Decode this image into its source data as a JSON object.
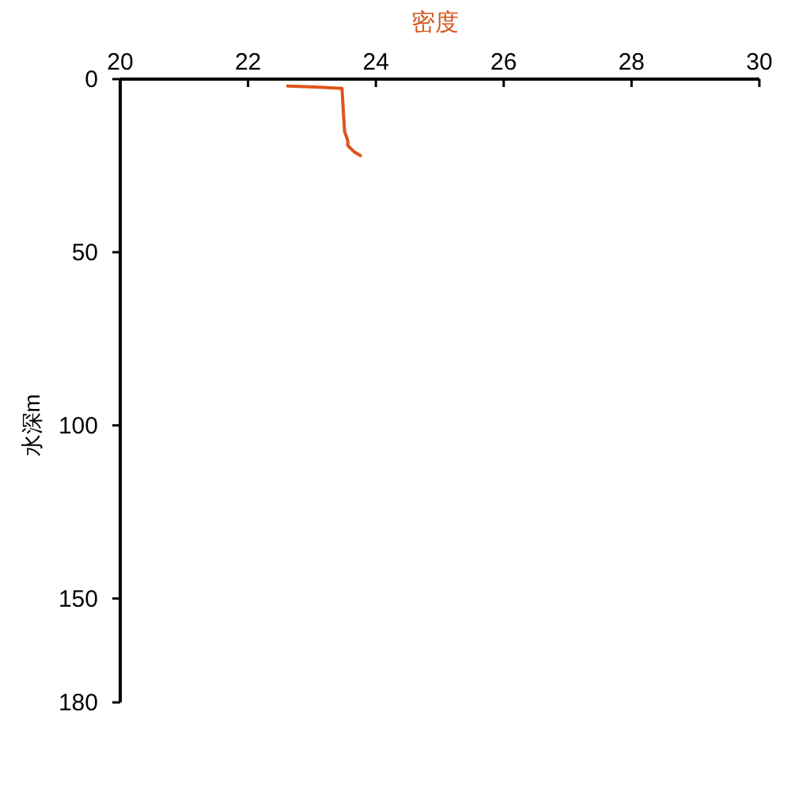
{
  "chart_data": {
    "type": "line",
    "xlabel": "密度",
    "ylabel": "水深m",
    "x": [
      22.62,
      23.04,
      23.47,
      23.49,
      23.51,
      23.56,
      23.56,
      23.66,
      23.76
    ],
    "series": [
      {
        "color": "#e0541c",
        "values": [
          2.0,
          2.3,
          2.7,
          9.1,
          15.1,
          17.8,
          19.2,
          21.0,
          22.1
        ]
      }
    ],
    "xlim": [
      20,
      30
    ],
    "xticks": [
      20,
      22,
      24,
      26,
      28,
      30
    ],
    "ylim": [
      180,
      0
    ],
    "yticks": [
      0,
      50,
      100,
      150,
      180
    ],
    "grid": false,
    "marker": "none",
    "line_style": "solid"
  }
}
